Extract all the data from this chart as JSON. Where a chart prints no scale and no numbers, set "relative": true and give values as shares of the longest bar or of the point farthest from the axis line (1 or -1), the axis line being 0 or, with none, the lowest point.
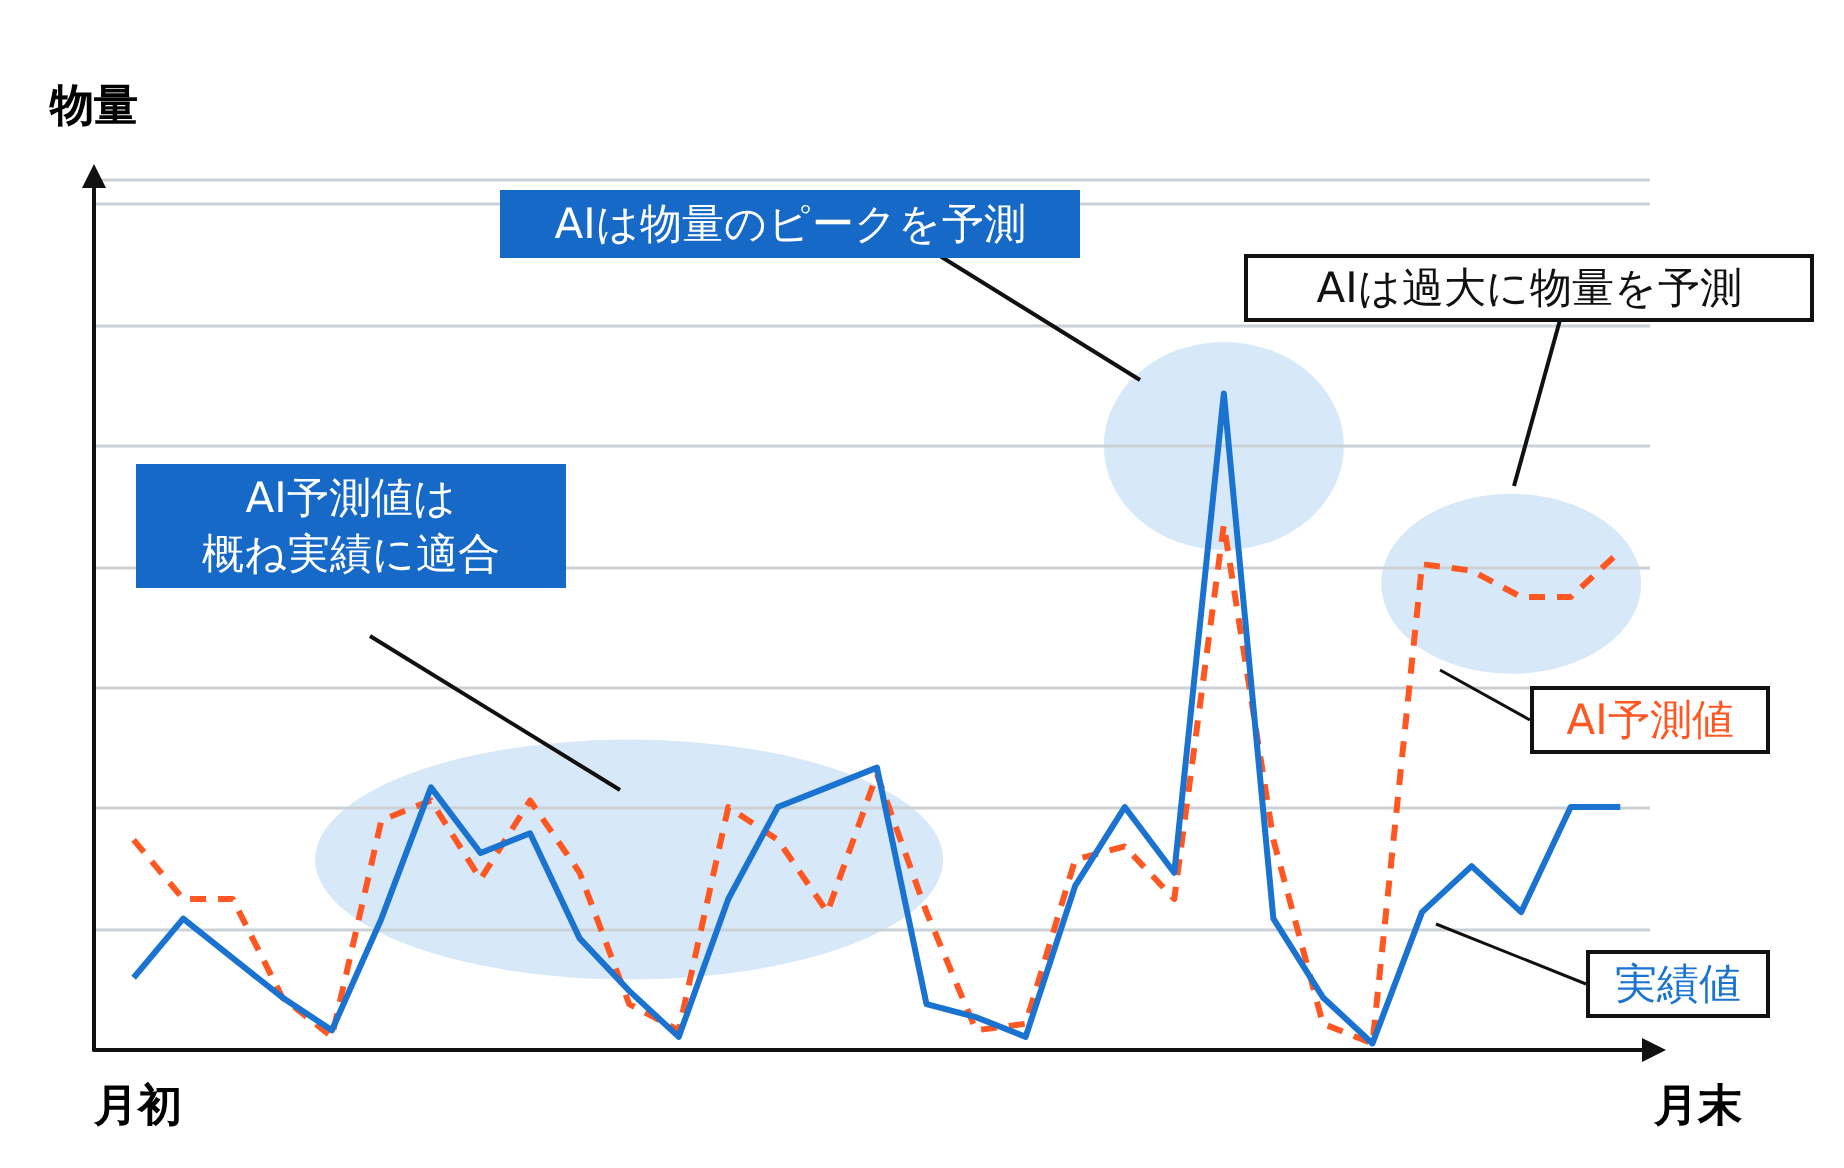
{
  "chart_data": {
    "type": "line",
    "relative": true,
    "xlabel": "月末",
    "categories": [
      null,
      null,
      null,
      null,
      null,
      null,
      null,
      null,
      null,
      null,
      null,
      null,
      null,
      null,
      null,
      null,
      null,
      null,
      null,
      null,
      null,
      null,
      null,
      null,
      null,
      null,
      null,
      null,
      null,
      null,
      null
    ],
    "series": [
      {
        "name": "AI予測値",
        "color": "#ff5722",
        "line_style": "dashed",
        "values": [
          0.32,
          0.23,
          0.23,
          0.08,
          0.02,
          0.35,
          0.38,
          0.26,
          0.38,
          0.27,
          0.07,
          0.03,
          0.37,
          0.32,
          0.21,
          0.42,
          0.21,
          0.03,
          0.04,
          0.29,
          0.31,
          0.23,
          0.8,
          0.32,
          0.04,
          0.01,
          0.74,
          0.73,
          0.69,
          0.69,
          0.76
        ]
      },
      {
        "name": "実績値",
        "color": "#1a73d0",
        "line_style": "solid",
        "values": [
          0.11,
          0.2,
          0.14,
          0.08,
          0.03,
          0.2,
          0.4,
          0.3,
          0.33,
          0.17,
          0.09,
          0.02,
          0.23,
          0.37,
          0.4,
          0.43,
          0.07,
          0.05,
          0.02,
          0.25,
          0.37,
          0.27,
          1,
          0.2,
          0.08,
          0.01,
          0.21,
          0.28,
          0.21,
          0.37,
          0.37
        ]
      }
    ],
    "annotations": [
      "物量",
      "月初",
      "AI予測値は",
      "概ね実績に適合",
      "AIは物量のピークを予測",
      "AIは過大に物量を予測"
    ],
    "grid": "y",
    "legend": false,
    "marker": "none"
  }
}
